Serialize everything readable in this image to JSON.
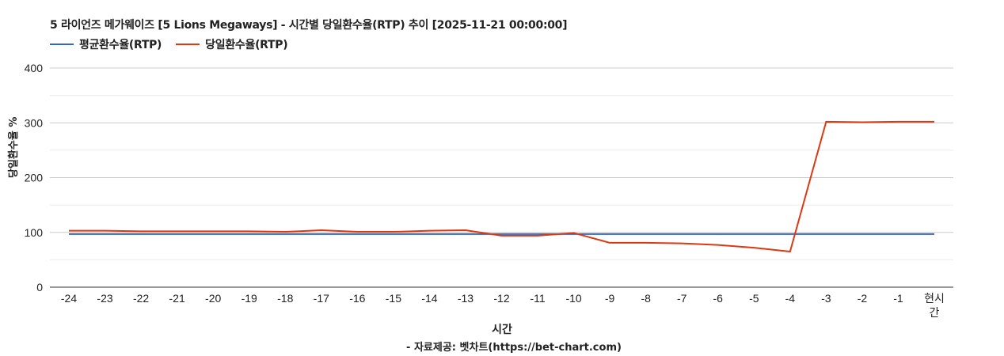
{
  "chart_data": {
    "type": "line",
    "title": "5 라이언즈 메가웨이즈 [5 Lions Megaways] - 시간별 당일환수율(RTP) 추이 [2025-11-21 00:00:00]",
    "xlabel": "시간",
    "ylabel": "당일환수율 %",
    "source": "- 자료제공: 벳차트(https://bet-chart.com)",
    "categories": [
      "-24",
      "-23",
      "-22",
      "-21",
      "-20",
      "-19",
      "-18",
      "-17",
      "-16",
      "-15",
      "-14",
      "-13",
      "-12",
      "-11",
      "-10",
      "-9",
      "-8",
      "-7",
      "-6",
      "-5",
      "-4",
      "-3",
      "-2",
      "-1",
      "현시간"
    ],
    "series": [
      {
        "name": "평균환수율(RTP)",
        "color": "#3366cc",
        "values": [
          97,
          97,
          97,
          97,
          97,
          97,
          97,
          97,
          97,
          97,
          97,
          97,
          97,
          97,
          97,
          97,
          97,
          97,
          97,
          97,
          97,
          97,
          97,
          97,
          97
        ]
      },
      {
        "name": "당일환수율(RTP)",
        "color": "#dc3912",
        "values": [
          103,
          103,
          102,
          102,
          102,
          102,
          101,
          104,
          101,
          101,
          103,
          104,
          94,
          94,
          99,
          81,
          81,
          80,
          77,
          72,
          65,
          302,
          301,
          302,
          302
        ]
      }
    ],
    "ylim": [
      0,
      400
    ],
    "yticks": [
      0,
      100,
      200,
      300,
      400
    ],
    "grid": true,
    "legend_position": "top"
  }
}
